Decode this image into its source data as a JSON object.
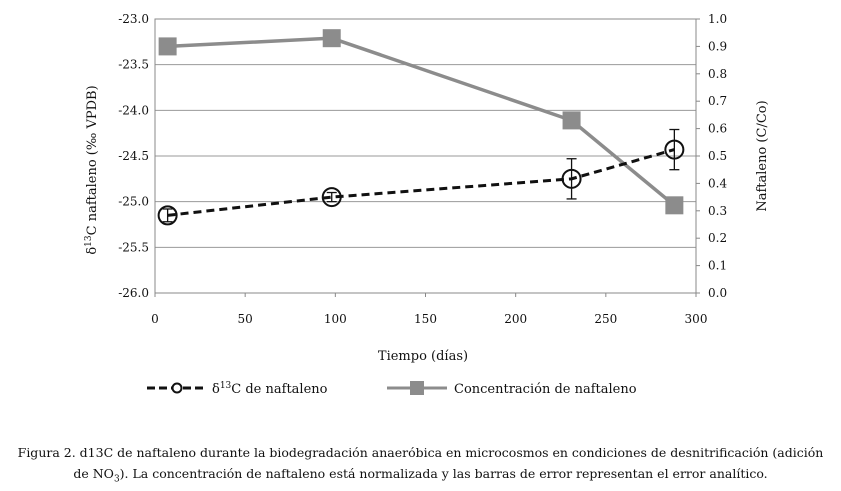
{
  "chart_data": {
    "type": "line",
    "x_axis": {
      "title": "Tiempo (días)",
      "range": [
        0,
        300
      ],
      "ticks": [
        "0",
        "50",
        "100",
        "150",
        "200",
        "250",
        "300"
      ]
    },
    "y_left": {
      "title_prefix": "δ",
      "title_sup": "13",
      "title_rest": "C naftaleno (‰ VPDB)",
      "range": [
        -26.0,
        -23.0
      ],
      "ticks": [
        "-23.0",
        "-23.5",
        "-24.0",
        "-24.5",
        "-25.0",
        "-25.5",
        "-26.0"
      ]
    },
    "y_right": {
      "title": "Naftaleno (C/Co)",
      "range": [
        0.0,
        1.0
      ],
      "ticks": [
        "1.0",
        "0.9",
        "0.8",
        "0.7",
        "0.6",
        "0.5",
        "0.4",
        "0.3",
        "0.2",
        "0.1",
        "0.0"
      ]
    },
    "grid": true,
    "series": [
      {
        "name_prefix": "δ",
        "name_sup": "13",
        "name_rest": "C de naftaleno",
        "axis": "left",
        "style": "dashed-black-open-circle",
        "color": "#111111",
        "points": [
          {
            "x": 7,
            "y": -25.15,
            "err": 0.07
          },
          {
            "x": 98,
            "y": -24.95,
            "err": 0.05
          },
          {
            "x": 231,
            "y": -24.75,
            "err": 0.22
          },
          {
            "x": 288,
            "y": -24.43,
            "err": 0.22
          }
        ]
      },
      {
        "name": "Concentración de naftaleno",
        "axis": "right",
        "style": "solid-gray-square",
        "color": "#8c8c8c",
        "points": [
          {
            "x": 7,
            "y": 0.9
          },
          {
            "x": 98,
            "y": 0.93
          },
          {
            "x": 231,
            "y": 0.63
          },
          {
            "x": 288,
            "y": 0.32
          }
        ]
      }
    ]
  },
  "caption": {
    "line1": "Figura 2. d13C de naftaleno durante la biodegradación anaeróbica en microcosmos en condiciones de desnitrificación (adición",
    "line2_pre": "de NO",
    "line2_sub": "3",
    "line2_post": "). La concentración de naftaleno está normalizada y las barras de error representan el error analítico."
  }
}
